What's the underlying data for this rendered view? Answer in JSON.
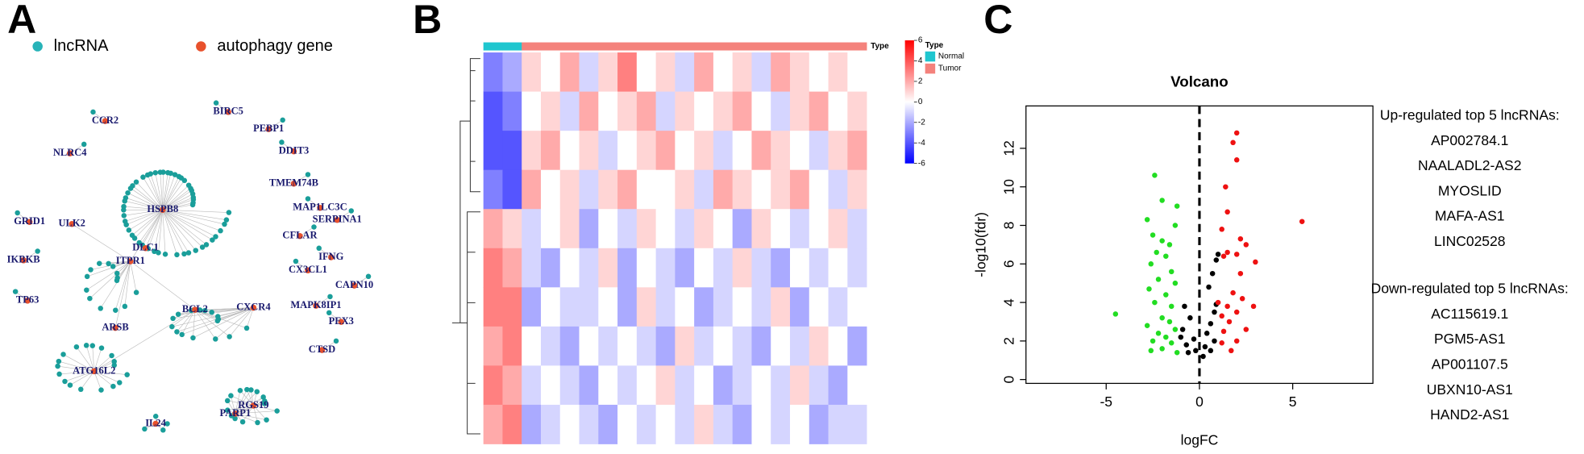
{
  "panels": {
    "a": "A",
    "b": "B",
    "c": "C"
  },
  "network": {
    "legend": [
      "lncRNA",
      "autophagy gene"
    ],
    "genes": [
      "CCR2",
      "NLRC4",
      "BIRC5",
      "PEBP1",
      "DDIT3",
      "TMEM74B",
      "HSPB8",
      "MAP1LC3C",
      "SERPINA1",
      "GRID1",
      "ULK2",
      "CFLAR",
      "DLC1",
      "ITPR1",
      "IFNG",
      "IKBKB",
      "CX3CL1",
      "CAPN10",
      "TP63",
      "MAPK8IP1",
      "PEX3",
      "BCL2",
      "CXCR4",
      "ARSB",
      "ATG16L2",
      "CTSD",
      "RGS19",
      "PARP1",
      "IL24"
    ]
  },
  "heatmap": {
    "type_label": "Type",
    "legend_title": "Type",
    "groups": [
      "Normal",
      "Tumor"
    ],
    "group_colors": [
      "#1fc6cf",
      "#f4827c"
    ],
    "column_groups": [
      0,
      0,
      1,
      1,
      1,
      1,
      1,
      1,
      1,
      1,
      1,
      1,
      1,
      1,
      1,
      1,
      1,
      1,
      1,
      1
    ],
    "key_lim": [
      -6,
      6
    ],
    "key_ticks": [
      6,
      4,
      2,
      0,
      -2,
      -4,
      -6
    ],
    "values": [
      [
        -3,
        -2,
        1,
        0,
        2,
        -1,
        1,
        3,
        0,
        1,
        -1,
        2,
        0,
        1,
        -1,
        2,
        1,
        0,
        1,
        0
      ],
      [
        -4,
        -3,
        0,
        1,
        -1,
        2,
        0,
        1,
        2,
        -1,
        1,
        0,
        1,
        2,
        0,
        -1,
        1,
        2,
        0,
        1
      ],
      [
        -4,
        -4,
        1,
        2,
        0,
        1,
        -1,
        0,
        1,
        2,
        0,
        1,
        -1,
        0,
        2,
        1,
        0,
        -1,
        1,
        2
      ],
      [
        -3,
        -4,
        2,
        0,
        1,
        -1,
        1,
        2,
        0,
        0,
        1,
        -1,
        2,
        1,
        0,
        1,
        2,
        0,
        -1,
        1
      ],
      [
        2,
        1,
        -1,
        0,
        1,
        -2,
        0,
        -1,
        1,
        0,
        -1,
        1,
        0,
        -2,
        1,
        0,
        -1,
        0,
        1,
        -1
      ],
      [
        3,
        2,
        -1,
        -2,
        0,
        -1,
        1,
        -2,
        0,
        -1,
        -2,
        0,
        -1,
        1,
        -1,
        -2,
        0,
        -1,
        0,
        -1
      ],
      [
        3,
        3,
        -2,
        0,
        -1,
        -1,
        0,
        -2,
        1,
        -1,
        0,
        -2,
        -1,
        0,
        -1,
        1,
        -2,
        0,
        -1,
        0
      ],
      [
        2,
        3,
        0,
        -1,
        -2,
        0,
        -1,
        0,
        -1,
        -2,
        1,
        -1,
        0,
        -1,
        -2,
        0,
        -1,
        1,
        0,
        -2
      ],
      [
        3,
        2,
        -1,
        0,
        -1,
        -2,
        0,
        -1,
        0,
        1,
        -1,
        0,
        -2,
        -1,
        0,
        -1,
        1,
        -1,
        -2,
        0
      ],
      [
        2,
        3,
        -2,
        -1,
        0,
        -1,
        -2,
        0,
        -1,
        0,
        -1,
        1,
        -1,
        -2,
        0,
        -1,
        0,
        -2,
        -1,
        -1
      ]
    ]
  },
  "chart_data": {
    "type": "scatter",
    "title": "Volcano",
    "xlabel": "logFC",
    "ylabel": "-log10(fdr)",
    "xlim": [
      -9.3,
      9.3
    ],
    "ylim": [
      -0.2,
      14.2
    ],
    "xticks": [
      -5,
      0,
      5
    ],
    "yticks": [
      0,
      2,
      4,
      6,
      8,
      10,
      12
    ],
    "vline": 0,
    "series": [
      {
        "color": "#22dd22",
        "x": [
          -2.4,
          -2.0,
          -1.2,
          -2.8,
          -1.3,
          -2.5,
          -2.0,
          -1.6,
          -2.3,
          -1.8,
          -2.6,
          -1.5,
          -2.2,
          -1.3,
          -2.7,
          -1.8,
          -2.4,
          -1.5,
          -4.5,
          -2.0,
          -1.6,
          -2.8,
          -1.3,
          -2.2,
          -1.8,
          -2.5,
          -1.5,
          -2.0,
          -2.6,
          -1.2
        ],
        "y": [
          10.6,
          9.3,
          9.0,
          8.3,
          8.0,
          7.5,
          7.2,
          7.0,
          6.6,
          6.4,
          6.0,
          5.6,
          5.2,
          5.0,
          4.7,
          4.4,
          4.0,
          3.8,
          3.4,
          3.2,
          3.0,
          2.8,
          2.6,
          2.4,
          2.2,
          2.0,
          1.9,
          1.6,
          1.5,
          1.4
        ]
      },
      {
        "color": "#000000",
        "x": [
          -0.8,
          -0.5,
          -0.9,
          -0.3,
          -0.7,
          -0.2,
          0.2,
          -0.6,
          0.4,
          0.6,
          0.8,
          0.5,
          0.7,
          0.9,
          0.3,
          0.8,
          0.6,
          -1.0,
          1.0,
          0.9
        ],
        "y": [
          3.8,
          3.2,
          2.6,
          2.1,
          1.8,
          1.5,
          1.2,
          1.4,
          2.4,
          2.9,
          3.5,
          4.8,
          5.5,
          6.2,
          1.7,
          2.0,
          1.5,
          2.2,
          6.5,
          3.9
        ]
      },
      {
        "color": "#ee1111",
        "x": [
          2.0,
          1.8,
          2.0,
          1.4,
          5.5,
          1.5,
          1.2,
          2.2,
          2.5,
          1.5,
          2.0,
          1.3,
          3.0,
          1.8,
          2.3,
          1.5,
          2.9,
          1.2,
          2.0,
          1.6,
          2.5,
          1.3,
          2.0,
          1.7,
          1.2,
          2.2,
          1.0
        ],
        "y": [
          12.8,
          12.3,
          11.4,
          10.0,
          8.2,
          8.7,
          7.8,
          7.3,
          7.0,
          6.6,
          6.5,
          6.4,
          6.1,
          4.5,
          4.2,
          3.8,
          3.8,
          3.3,
          3.5,
          3.0,
          2.6,
          2.5,
          2.0,
          1.5,
          1.9,
          5.5,
          4.0
        ]
      }
    ]
  },
  "gene_lists": [
    {
      "title": "Up-regulated top 5 lncRNAs:",
      "items": [
        "AP002784.1",
        "NAALADL2-AS2",
        "MYOSLID",
        "MAFA-AS1",
        "LINC02528"
      ]
    },
    {
      "title": "Down-regulated top 5 lncRNAs:",
      "items": [
        "AC115619.1",
        "PGM5-AS1",
        "AP001107.5",
        "UBXN10-AS1",
        "HAND2-AS1"
      ]
    }
  ]
}
